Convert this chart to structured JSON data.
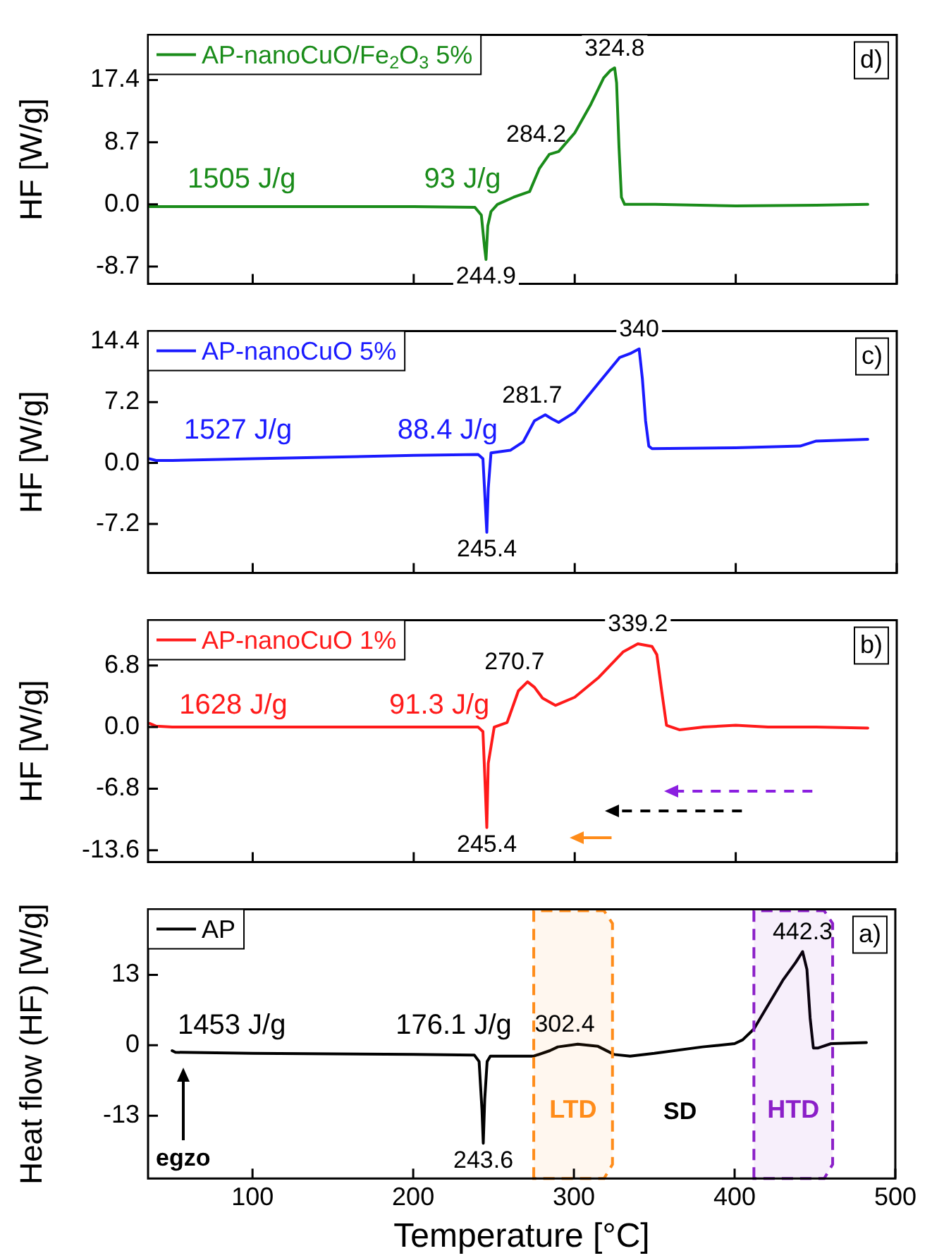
{
  "chart_data": [
    {
      "type": "line",
      "ylabel": "HF [W/g]",
      "xlim": [
        35,
        500
      ],
      "xticks": [
        100,
        200,
        300,
        400,
        500
      ],
      "ylim": [
        -11.1,
        23.7
      ],
      "yticks": [
        {
          "value": -8.7,
          "label": "-8.7"
        },
        {
          "value": 0,
          "label": "0.0"
        },
        {
          "value": 8.7,
          "label": "8.7"
        },
        {
          "value": 17.4,
          "label": "17.4"
        }
      ],
      "tick_labels": "y",
      "grid": false,
      "legend": "top left",
      "marker": "none",
      "series": [
        {
          "name": "AP-nanoCuO/Fe$_{2}$O$_{3}$ 5%",
          "color": "#1a8c1a",
          "x": [
            36,
            60,
            100,
            150,
            200,
            238,
            242,
            244,
            244.9,
            246,
            248,
            252,
            262,
            272,
            278,
            284.2,
            290,
            300,
            310,
            318,
            322,
            324.8,
            326,
            327.5,
            329,
            331,
            350,
            400,
            450,
            482
          ],
          "values": [
            -0.3,
            -0.3,
            -0.3,
            -0.3,
            -0.3,
            -0.4,
            -1.5,
            -6,
            -7.7,
            -3,
            -1,
            0,
            1,
            1.8,
            5,
            7,
            7.4,
            10,
            14,
            17.7,
            18.7,
            19.1,
            17,
            8,
            1,
            0,
            0,
            -0.2,
            -0.1,
            0
          ]
        }
      ],
      "annotations": [
        "d)",
        "1505 J/g",
        "93 J/g",
        {
          "text": "324.8",
          "x": 324.8,
          "y": 19.1
        },
        {
          "text": "284.2",
          "x": 284.2,
          "y": 7
        },
        {
          "text": "244.9",
          "x": 244.9,
          "y": -7.7
        }
      ]
    },
    {
      "type": "line",
      "ylabel": "HF [W/g]",
      "xlim": [
        35,
        500
      ],
      "xticks": [
        100,
        200,
        300,
        400,
        500
      ],
      "ylim": [
        -13,
        15.6
      ],
      "yticks": [
        {
          "value": -7.2,
          "label": "-7.2"
        },
        {
          "value": 0,
          "label": "0.0"
        },
        {
          "value": 7.2,
          "label": "7.2"
        },
        {
          "value": 14.4,
          "label": "14.4"
        }
      ],
      "tick_labels": "y",
      "grid": false,
      "legend": "top left",
      "marker": "none",
      "series": [
        {
          "name": "AP-nanoCuO 5%",
          "color": "#1a1aff",
          "x": [
            36,
            40,
            50,
            100,
            150,
            200,
            240,
            243,
            244.5,
            245.4,
            246.3,
            248,
            260,
            268,
            275,
            281.7,
            286,
            290,
            300,
            315,
            328,
            335,
            340,
            342,
            344,
            346,
            348,
            400,
            440,
            450,
            482
          ],
          "values": [
            0.5,
            0.3,
            0.3,
            0.5,
            0.7,
            0.9,
            1,
            0.5,
            -5,
            -8.2,
            -3,
            1.2,
            1.5,
            2.5,
            5,
            5.7,
            5.2,
            4.8,
            6,
            9.5,
            12.5,
            13,
            13.5,
            10,
            5,
            2,
            1.7,
            1.8,
            2,
            2.6,
            2.8
          ]
        }
      ],
      "annotations": [
        "c)",
        "1527 J/g",
        "88.4 J/g",
        {
          "text": "340",
          "x": 340,
          "y": 13.5
        },
        {
          "text": "281.7",
          "x": 281.7,
          "y": 5.7
        },
        {
          "text": "245.4",
          "x": 245.4,
          "y": -8.2
        }
      ]
    },
    {
      "type": "line",
      "ylabel": "HF [W/g]",
      "xlim": [
        35,
        500
      ],
      "xticks": [
        100,
        200,
        300,
        400,
        500
      ],
      "ylim": [
        -14.9,
        11.8
      ],
      "yticks": [
        {
          "value": -13.6,
          "label": "-13.6"
        },
        {
          "value": -6.8,
          "label": "-6.8"
        },
        {
          "value": 0,
          "label": "0.0"
        },
        {
          "value": 6.8,
          "label": "6.8"
        }
      ],
      "tick_labels": "y",
      "grid": false,
      "legend": "top left",
      "marker": "none",
      "series": [
        {
          "name": "AP-nanoCuO 1%",
          "color": "#ff1a1a",
          "x": [
            36,
            40,
            50,
            100,
            150,
            200,
            240,
            243,
            244.5,
            245.4,
            246.3,
            250,
            258,
            265,
            270.7,
            275,
            280,
            288,
            300,
            315,
            330,
            339.2,
            348,
            351,
            354,
            357,
            365,
            380,
            400,
            420,
            450,
            482
          ],
          "values": [
            0.4,
            0.1,
            0,
            0,
            0,
            0,
            0,
            -0.5,
            -7,
            -11.1,
            -4,
            0,
            0.5,
            4,
            5,
            4.4,
            3.2,
            2.4,
            3.3,
            5.5,
            8.3,
            9.2,
            8.9,
            8,
            4,
            0.2,
            -0.3,
            0,
            0.2,
            0,
            0,
            -0.1
          ]
        }
      ],
      "annotations": [
        "b)",
        "1628 J/g",
        "91.3 J/g",
        {
          "text": "339.2",
          "x": 339.2,
          "y": 9.2
        },
        {
          "text": "270.7",
          "x": 270.7,
          "y": 5
        },
        {
          "text": "245.4",
          "x": 245.4,
          "y": -11.1
        }
      ]
    },
    {
      "type": "line",
      "xlabel": "Temperature [°C]",
      "ylabel": "Heat flow (HF) [W/g]",
      "xlim": [
        35,
        500
      ],
      "xticks": [
        100,
        200,
        300,
        400,
        500
      ],
      "ylim": [
        -24.6,
        25.1
      ],
      "yticks": [
        -13,
        0,
        13
      ],
      "grid": false,
      "legend": "top left",
      "marker": "none",
      "series": [
        {
          "name": "AP",
          "color": "#000000",
          "x": [
            50,
            52,
            100,
            150,
            200,
            238,
            241,
            242.8,
            243.6,
            244.5,
            246,
            248,
            275,
            285,
            290,
            302.4,
            315,
            325,
            335,
            350,
            380,
            400,
            405,
            412,
            420,
            430,
            438,
            442.3,
            445,
            447,
            449,
            452,
            460,
            482
          ],
          "values": [
            -1,
            -1.3,
            -1.5,
            -1.6,
            -1.7,
            -1.8,
            -3,
            -12,
            -18.1,
            -10,
            -3,
            -2,
            -2,
            -1,
            -0.3,
            0.2,
            -0.2,
            -1.7,
            -2,
            -1.5,
            -0.3,
            0.3,
            1,
            3,
            7,
            12,
            15.3,
            17.3,
            14,
            5,
            -0.5,
            -0.5,
            0.3,
            0.5
          ]
        }
      ],
      "bands": [
        {
          "axis": "x",
          "from": 275,
          "to": 324,
          "label": "LTD",
          "color": "#ff8c1a"
        },
        {
          "axis": "x",
          "from": 412,
          "to": 461,
          "label": "HTD",
          "color": "#8b1fc8"
        }
      ],
      "annotations": [
        "a)",
        "1453 J/g",
        "176.1 J/g",
        "SD",
        "egzo",
        {
          "text": "442.3",
          "x": 442.3,
          "y": 17.3
        },
        {
          "text": "302.4",
          "x": 302.4,
          "y": 0.2
        },
        {
          "text": "243.6",
          "x": 243.6,
          "y": -18.1
        }
      ]
    }
  ]
}
